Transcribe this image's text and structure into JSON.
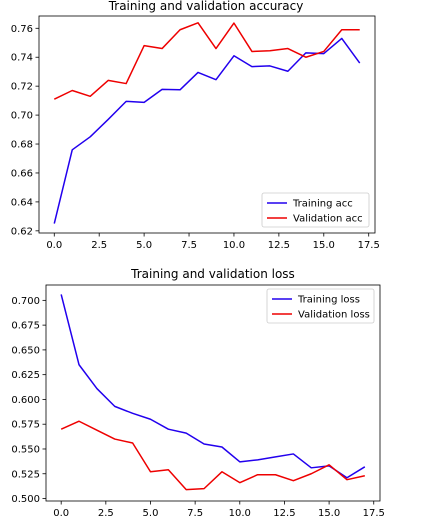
{
  "colors": {
    "training": "#2200ee",
    "validation": "#ee0000",
    "axes": "#000000",
    "legend_border": "#cccccc",
    "background": "#ffffff"
  },
  "chart_data": [
    {
      "type": "line",
      "title": "Training and validation accuracy",
      "xlabel": "",
      "ylabel": "",
      "xlim": [
        -0.85,
        17.85
      ],
      "ylim": [
        0.6185,
        0.7685
      ],
      "xticks": [
        0.0,
        2.5,
        5.0,
        7.5,
        10.0,
        12.5,
        15.0,
        17.5
      ],
      "xtick_labels": [
        "0.0",
        "2.5",
        "5.0",
        "7.5",
        "10.0",
        "12.5",
        "15.0",
        "17.5"
      ],
      "yticks": [
        0.62,
        0.64,
        0.66,
        0.68,
        0.7,
        0.72,
        0.74,
        0.76
      ],
      "ytick_labels": [
        "0.62",
        "0.64",
        "0.66",
        "0.68",
        "0.70",
        "0.72",
        "0.74",
        "0.76"
      ],
      "grid": false,
      "legend_position": "lower-right",
      "x": [
        0,
        1,
        2,
        3,
        4,
        5,
        6,
        7,
        8,
        9,
        10,
        11,
        12,
        13,
        14,
        15,
        16,
        17
      ],
      "series": [
        {
          "name": "Training acc",
          "color_key": "training",
          "values": [
            0.625,
            0.676,
            0.685,
            0.697,
            0.7095,
            0.7088,
            0.7178,
            0.7175,
            0.7295,
            0.7245,
            0.741,
            0.7335,
            0.734,
            0.7303,
            0.743,
            0.7425,
            0.753,
            0.736
          ]
        },
        {
          "name": "Validation acc",
          "color_key": "validation",
          "values": [
            0.711,
            0.717,
            0.713,
            0.724,
            0.7218,
            0.748,
            0.746,
            0.759,
            0.7638,
            0.746,
            0.7636,
            0.744,
            0.7445,
            0.746,
            0.74,
            0.744,
            0.759,
            0.759
          ]
        }
      ]
    },
    {
      "type": "line",
      "title": "Training and validation loss",
      "xlabel": "",
      "ylabel": "",
      "xlim": [
        -0.85,
        17.85
      ],
      "ylim": [
        0.4975,
        0.7155
      ],
      "xticks": [
        0.0,
        2.5,
        5.0,
        7.5,
        10.0,
        12.5,
        15.0,
        17.5
      ],
      "xtick_labels": [
        "0.0",
        "2.5",
        "5.0",
        "7.5",
        "10.0",
        "12.5",
        "15.0",
        "17.5"
      ],
      "yticks": [
        0.5,
        0.525,
        0.55,
        0.575,
        0.6,
        0.625,
        0.65,
        0.675,
        0.7
      ],
      "ytick_labels": [
        "0.500",
        "0.525",
        "0.550",
        "0.575",
        "0.600",
        "0.625",
        "0.650",
        "0.675",
        "0.700"
      ],
      "grid": false,
      "legend_position": "upper-right",
      "x": [
        0,
        1,
        2,
        3,
        4,
        5,
        6,
        7,
        8,
        9,
        10,
        11,
        12,
        13,
        14,
        15,
        16,
        17
      ],
      "series": [
        {
          "name": "Training loss",
          "color_key": "training",
          "values": [
            0.706,
            0.635,
            0.611,
            0.593,
            0.586,
            0.58,
            0.57,
            0.566,
            0.555,
            0.552,
            0.537,
            0.539,
            0.542,
            0.545,
            0.531,
            0.533,
            0.521,
            0.532
          ]
        },
        {
          "name": "Validation loss",
          "color_key": "validation",
          "values": [
            0.57,
            0.578,
            0.569,
            0.56,
            0.556,
            0.527,
            0.529,
            0.509,
            0.51,
            0.527,
            0.516,
            0.524,
            0.524,
            0.518,
            0.525,
            0.534,
            0.519,
            0.523
          ]
        }
      ]
    }
  ]
}
